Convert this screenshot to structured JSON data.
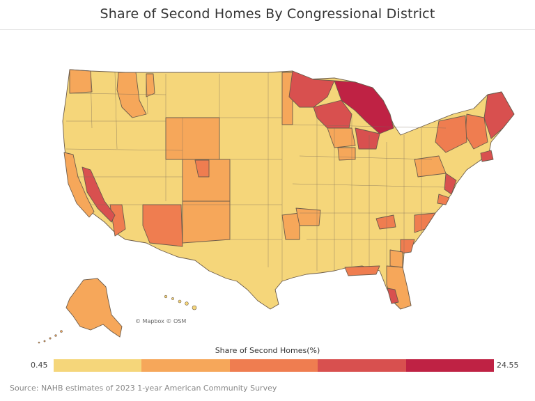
{
  "title": "Share of Second Homes By Congressional District",
  "attribution": "© Mapbox © OSM",
  "legend": {
    "title": "Share of Second Homes(%)",
    "min": "0.45",
    "max": "24.55",
    "colors": [
      "#f5d67a",
      "#f6a75a",
      "#ef7d50",
      "#d8504f",
      "#bf2244"
    ]
  },
  "source": "Source: NAHB estimates of 2023 1-year American Community Survey",
  "colors": {
    "low": "#f5d67a",
    "mid_low": "#f6a75a",
    "mid": "#ef7d50",
    "high": "#d8504f",
    "very_high": "#bf2244",
    "border": "#6b5b4b"
  }
}
